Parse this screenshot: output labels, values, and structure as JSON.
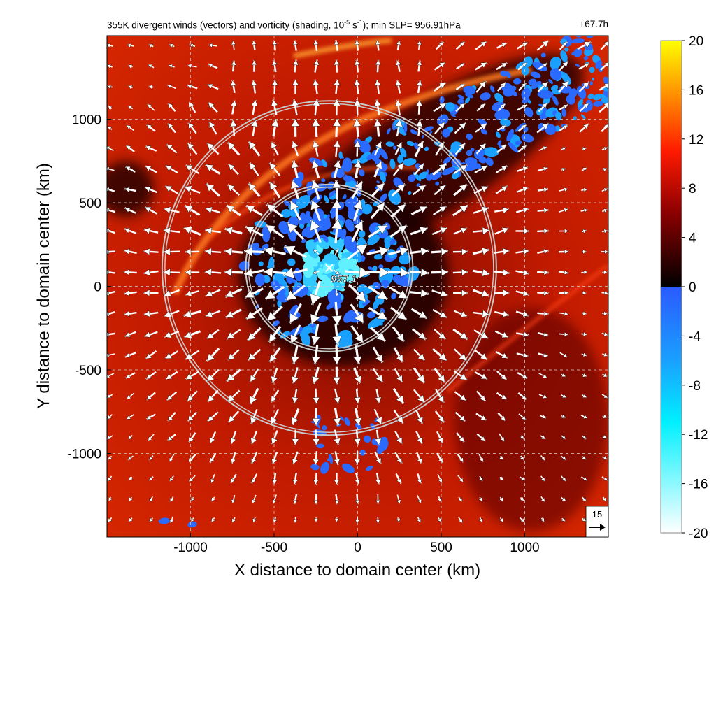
{
  "header": {
    "title_part1": "355K divergent winds (vectors) and vorticity (shading, 10",
    "title_exp1": "-5",
    "title_part2": " s",
    "title_exp2": "-1",
    "title_part3": "); min SLP= 956.91hPa",
    "forecast_time": "+67.7h"
  },
  "chart_data": {
    "type": "heatmap",
    "title": "355K divergent winds (vectors) and vorticity (shading, 10^-5 s^-1); min SLP= 956.91hPa",
    "xlabel": "X distance to domain center (km)",
    "ylabel": "Y distance to domain center (km)",
    "xlim": [
      -1500,
      1500
    ],
    "ylim": [
      -1500,
      1500
    ],
    "x_ticks": [
      -1000,
      -500,
      0,
      500,
      1000
    ],
    "y_ticks": [
      -1000,
      -500,
      0,
      500,
      1000
    ],
    "x_tick_labels": [
      "-1000",
      "-500",
      "0",
      "500",
      "1000"
    ],
    "y_tick_labels": [
      "-1000",
      "-500",
      "0",
      "500",
      "1000"
    ],
    "grid": true,
    "colorbar": {
      "min": -20,
      "max": 20,
      "ticks": [
        "20",
        "16",
        "12",
        "8",
        "4",
        "0",
        "-4",
        "-8",
        "-12",
        "-16",
        "-20"
      ],
      "colors": {
        "positive_low": "#000000",
        "positive_mid": "#8b0000",
        "positive_high": "#ff2a00",
        "positive_top": "#ffff00",
        "negative_low": "#2a5aff",
        "negative_mid": "#00e5ff",
        "negative_top": "#ffffff"
      }
    },
    "storm_center": {
      "x": -170,
      "y": 110,
      "label": "957.1"
    },
    "range_rings_km": [
      500,
      1000
    ],
    "reference_vector": {
      "value": "15",
      "position": "bottom-right"
    },
    "vector_field": "divergent outflow radiating from storm center"
  }
}
